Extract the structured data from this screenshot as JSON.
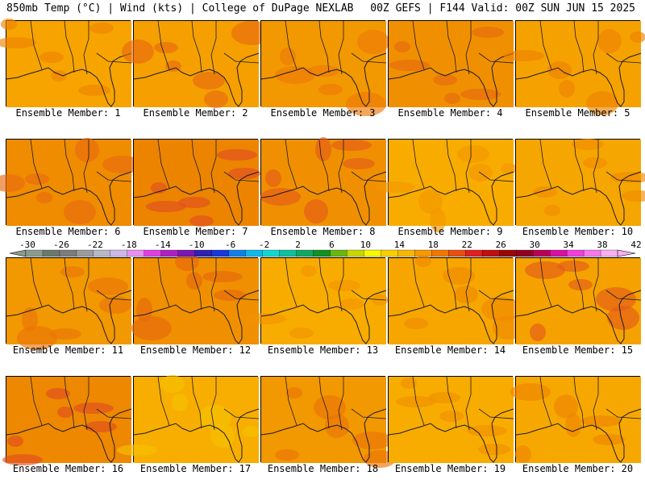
{
  "header": {
    "left": "850mb Temp (°C) | Wind (kts) | College of DuPage NEXLAB",
    "right": "00Z GEFS | F144 Valid: 00Z SUN JUN 15 2025"
  },
  "members": [
    {
      "label": "Ensemble Member: 1",
      "base": "#f7a400",
      "blob": "#ef8400"
    },
    {
      "label": "Ensemble Member: 2",
      "base": "#f5a000",
      "blob": "#e86a10"
    },
    {
      "label": "Ensemble Member: 3",
      "base": "#f29800",
      "blob": "#ec7a08"
    },
    {
      "label": "Ensemble Member: 4",
      "base": "#f09000",
      "blob": "#e66a10"
    },
    {
      "label": "Ensemble Member: 5",
      "base": "#f5a200",
      "blob": "#ee8200"
    },
    {
      "label": "Ensemble Member: 6",
      "base": "#ef8c00",
      "blob": "#e86a10"
    },
    {
      "label": "Ensemble Member: 7",
      "base": "#ec8400",
      "blob": "#e04e20"
    },
    {
      "label": "Ensemble Member: 8",
      "base": "#f09000",
      "blob": "#e45c18"
    },
    {
      "label": "Ensemble Member: 9",
      "base": "#f8ac00",
      "blob": "#f29600"
    },
    {
      "label": "Ensemble Member: 10",
      "base": "#f6a600",
      "blob": "#ef8c00"
    },
    {
      "label": "Ensemble Member: 11",
      "base": "#f29800",
      "blob": "#ea7408"
    },
    {
      "label": "Ensemble Member: 12",
      "base": "#f09000",
      "blob": "#e66810"
    },
    {
      "label": "Ensemble Member: 13",
      "base": "#f8ac00",
      "blob": "#f29400"
    },
    {
      "label": "Ensemble Member: 14",
      "base": "#f7a600",
      "blob": "#ef8800"
    },
    {
      "label": "Ensemble Member: 15",
      "base": "#f5a200",
      "blob": "#e45c18"
    },
    {
      "label": "Ensemble Member: 16",
      "base": "#ee8800",
      "blob": "#e04e20"
    },
    {
      "label": "Ensemble Member: 17",
      "base": "#f8ae00",
      "blob": "#f4c000"
    },
    {
      "label": "Ensemble Member: 18",
      "base": "#f29800",
      "blob": "#ea7408"
    },
    {
      "label": "Ensemble Member: 19",
      "base": "#f8ac00",
      "blob": "#f09000"
    },
    {
      "label": "Ensemble Member: 20",
      "base": "#f7a800",
      "blob": "#ee8400"
    }
  ],
  "colorbar": {
    "labels": [
      "-30",
      "-26",
      "-22",
      "-18",
      "-14",
      "-10",
      "-6",
      "-2",
      "2",
      "6",
      "10",
      "14",
      "18",
      "22",
      "26",
      "30",
      "34",
      "38",
      "42"
    ],
    "colors": [
      "#8c9c8c",
      "#6c786c",
      "#7c7c7c",
      "#9c9c9c",
      "#b8b8c8",
      "#d0b8e8",
      "#e890f0",
      "#e040e0",
      "#b020c0",
      "#7818b0",
      "#3020b0",
      "#1838d8",
      "#1080e8",
      "#10b8e8",
      "#10d8d0",
      "#10c0a0",
      "#10a860",
      "#109020",
      "#68b810",
      "#c8d800",
      "#f8f800",
      "#f8d000",
      "#f8b800",
      "#f89800",
      "#f07800",
      "#e85010",
      "#e02020",
      "#c01010",
      "#980808",
      "#900020",
      "#b80058",
      "#d810a0",
      "#f040d8",
      "#f878e8",
      "#f8b0f0"
    ]
  }
}
